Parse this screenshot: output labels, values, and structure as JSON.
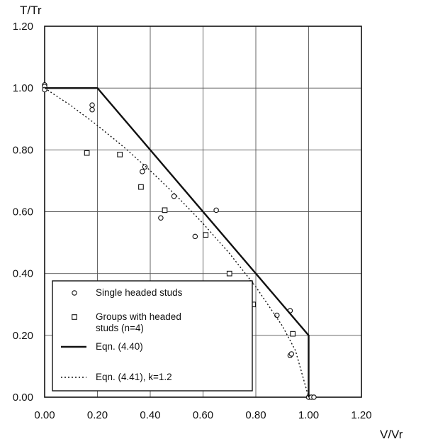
{
  "chart_data": {
    "type": "scatter",
    "title": "",
    "xlabel": "V/Vr",
    "ylabel": "T/Tr",
    "xlim": [
      0,
      1.2
    ],
    "ylim": [
      0,
      1.2
    ],
    "grid": true,
    "legend_position": "bottom-left",
    "x_ticks": [
      {
        "value": 0.0,
        "label": "0.00"
      },
      {
        "value": 0.2,
        "label": "0.20"
      },
      {
        "value": 0.4,
        "label": "0.40"
      },
      {
        "value": 0.6,
        "label": "0.60"
      },
      {
        "value": 0.8,
        "label": "0.80"
      },
      {
        "value": 1.0,
        "label": "1.00"
      },
      {
        "value": 1.2,
        "label": "1.20"
      }
    ],
    "y_ticks": [
      {
        "value": 0.0,
        "label": "0.00"
      },
      {
        "value": 0.2,
        "label": "0.20"
      },
      {
        "value": 0.4,
        "label": "0.40"
      },
      {
        "value": 0.6,
        "label": "0.60"
      },
      {
        "value": 0.8,
        "label": "0.80"
      },
      {
        "value": 1.0,
        "label": "1.00"
      },
      {
        "value": 1.2,
        "label": "1.20"
      }
    ],
    "series": [
      {
        "name": "Single headed studs",
        "kind": "scatter",
        "marker": "circle",
        "points": [
          [
            0.0,
            1.01
          ],
          [
            0.0,
            1.005
          ],
          [
            0.0,
            0.995
          ],
          [
            0.18,
            0.945
          ],
          [
            0.18,
            0.93
          ],
          [
            0.37,
            0.73
          ],
          [
            0.38,
            0.745
          ],
          [
            0.44,
            0.58
          ],
          [
            0.49,
            0.65
          ],
          [
            0.57,
            0.52
          ],
          [
            0.65,
            0.605
          ],
          [
            0.71,
            0.335
          ],
          [
            0.78,
            0.37
          ],
          [
            0.88,
            0.265
          ],
          [
            0.93,
            0.28
          ],
          [
            0.93,
            0.135
          ],
          [
            0.935,
            0.14
          ],
          [
            1.0,
            0.0
          ],
          [
            1.01,
            0.0
          ],
          [
            1.02,
            0.0
          ]
        ]
      },
      {
        "name": "Groups with headed studs (n=4)",
        "kind": "scatter",
        "marker": "square",
        "points": [
          [
            0.16,
            0.79
          ],
          [
            0.285,
            0.785
          ],
          [
            0.365,
            0.68
          ],
          [
            0.455,
            0.605
          ],
          [
            0.61,
            0.525
          ],
          [
            0.7,
            0.4
          ],
          [
            0.79,
            0.3
          ],
          [
            0.94,
            0.205
          ]
        ]
      },
      {
        "name": "Eqn. (4.40)",
        "kind": "line",
        "style": "solid",
        "points": [
          [
            0.0,
            1.0
          ],
          [
            0.2,
            1.0
          ],
          [
            1.0,
            0.2
          ],
          [
            1.0,
            0.0
          ]
        ]
      },
      {
        "name": "Eqn. (4.41), k=1.2",
        "kind": "line",
        "style": "dotted",
        "points": [
          [
            0.0,
            1.0
          ],
          [
            0.1,
            0.943
          ],
          [
            0.2,
            0.879
          ],
          [
            0.3,
            0.809
          ],
          [
            0.4,
            0.733
          ],
          [
            0.5,
            0.651
          ],
          [
            0.6,
            0.562
          ],
          [
            0.7,
            0.465
          ],
          [
            0.8,
            0.357
          ],
          [
            0.9,
            0.231
          ],
          [
            0.95,
            0.151
          ],
          [
            1.0,
            0.0
          ]
        ]
      }
    ],
    "legend": {
      "entries": [
        {
          "marker": "circle",
          "lines": [
            "Single headed studs"
          ]
        },
        {
          "marker": "square",
          "lines": [
            "Groups with headed",
            "studs (n=4)"
          ]
        },
        {
          "marker": "solid-line",
          "lines": [
            "Eqn. (4.40)"
          ]
        },
        {
          "marker": "dotted-line",
          "lines": [
            "Eqn. (4.41), k=1.2"
          ]
        }
      ]
    }
  }
}
